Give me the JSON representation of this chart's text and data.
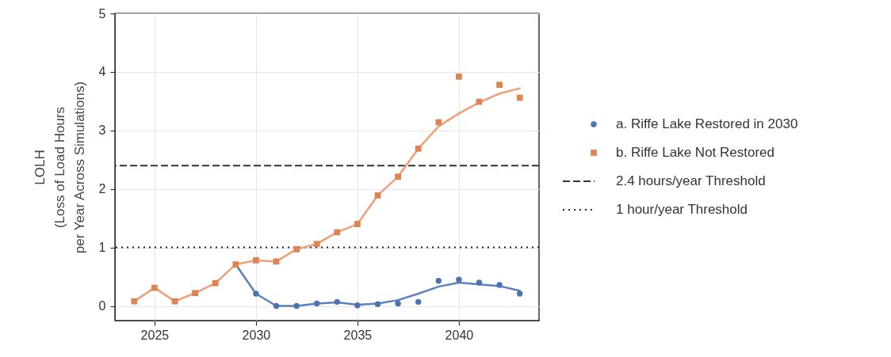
{
  "chart_data": {
    "type": "scatter",
    "ylabel": "LOLH\n(Loss of Load Hours\nper Year Across Simulations)",
    "xlim": [
      2023.05,
      2043.95
    ],
    "xticks": [
      2025,
      2030,
      2035,
      2040
    ],
    "ylim": [
      -0.25,
      5
    ],
    "yticks": [
      0,
      1,
      2,
      3,
      4,
      5
    ],
    "grid": true,
    "legend": "right",
    "series": [
      {
        "type": "line",
        "marker": "none",
        "color": "#5a80bd",
        "x": [
          2029,
          2030,
          2031,
          2032,
          2033,
          2034,
          2035,
          2036,
          2037,
          2038,
          2039,
          2040,
          2041,
          2042,
          2043
        ],
        "values": [
          0.71,
          0.21,
          0.0,
          0.0,
          0.04,
          0.06,
          0.02,
          0.04,
          0.1,
          0.21,
          0.33,
          0.4,
          0.37,
          0.34,
          0.26
        ]
      },
      {
        "type": "line",
        "marker": "none",
        "color": "#ef9f78",
        "x": [
          2024,
          2025,
          2026,
          2027,
          2028,
          2029,
          2030,
          2031,
          2032,
          2033,
          2034,
          2035,
          2036,
          2037,
          2038,
          2039,
          2040,
          2041,
          2042,
          2043
        ],
        "values": [
          0.08,
          0.31,
          0.08,
          0.22,
          0.39,
          0.71,
          0.78,
          0.76,
          0.97,
          1.06,
          1.26,
          1.4,
          1.89,
          2.21,
          2.69,
          3.07,
          3.29,
          3.48,
          3.63,
          3.72
        ]
      },
      {
        "name": "a. Riffe Lake Restored in 2030",
        "marker": "circle",
        "color": "#4c72b0",
        "x": [
          2030,
          2031,
          2032,
          2033,
          2034,
          2035,
          2036,
          2037,
          2038,
          2039,
          2040,
          2041,
          2042,
          2043
        ],
        "values": [
          0.21,
          0.0,
          0.0,
          0.04,
          0.07,
          0.01,
          0.03,
          0.04,
          0.07,
          0.43,
          0.45,
          0.4,
          0.36,
          0.21
        ]
      },
      {
        "name": "b. Riffe Lake Not Restored",
        "marker": "square",
        "color": "#dd8452",
        "x": [
          2024,
          2025,
          2026,
          2027,
          2028,
          2029,
          2030,
          2031,
          2032,
          2033,
          2034,
          2035,
          2036,
          2037,
          2038,
          2039,
          2040,
          2041,
          2042,
          2043
        ],
        "values": [
          0.08,
          0.31,
          0.08,
          0.22,
          0.39,
          0.71,
          0.78,
          0.76,
          0.97,
          1.06,
          1.26,
          1.4,
          1.89,
          2.21,
          2.69,
          3.14,
          3.92,
          3.49,
          3.78,
          3.56
        ]
      }
    ],
    "ref_lines": [
      {
        "axis": "y",
        "value": 2.4,
        "label": "2.4 hours/year Threshold",
        "line_style": "dashed",
        "color": "#333333"
      },
      {
        "axis": "y",
        "value": 1,
        "label": "1 hour/year Threshold",
        "line_style": "dotted",
        "color": "#222222"
      }
    ]
  }
}
